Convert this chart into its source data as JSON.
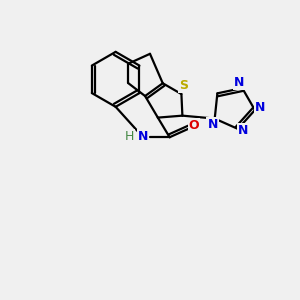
{
  "background_color": "#f0f0f0",
  "atom_colors": {
    "C": "#000000",
    "N": "#0000dd",
    "O": "#dd0000",
    "S": "#bbaa00",
    "H": "#448844"
  },
  "figsize": [
    3.0,
    3.0
  ],
  "dpi": 100
}
